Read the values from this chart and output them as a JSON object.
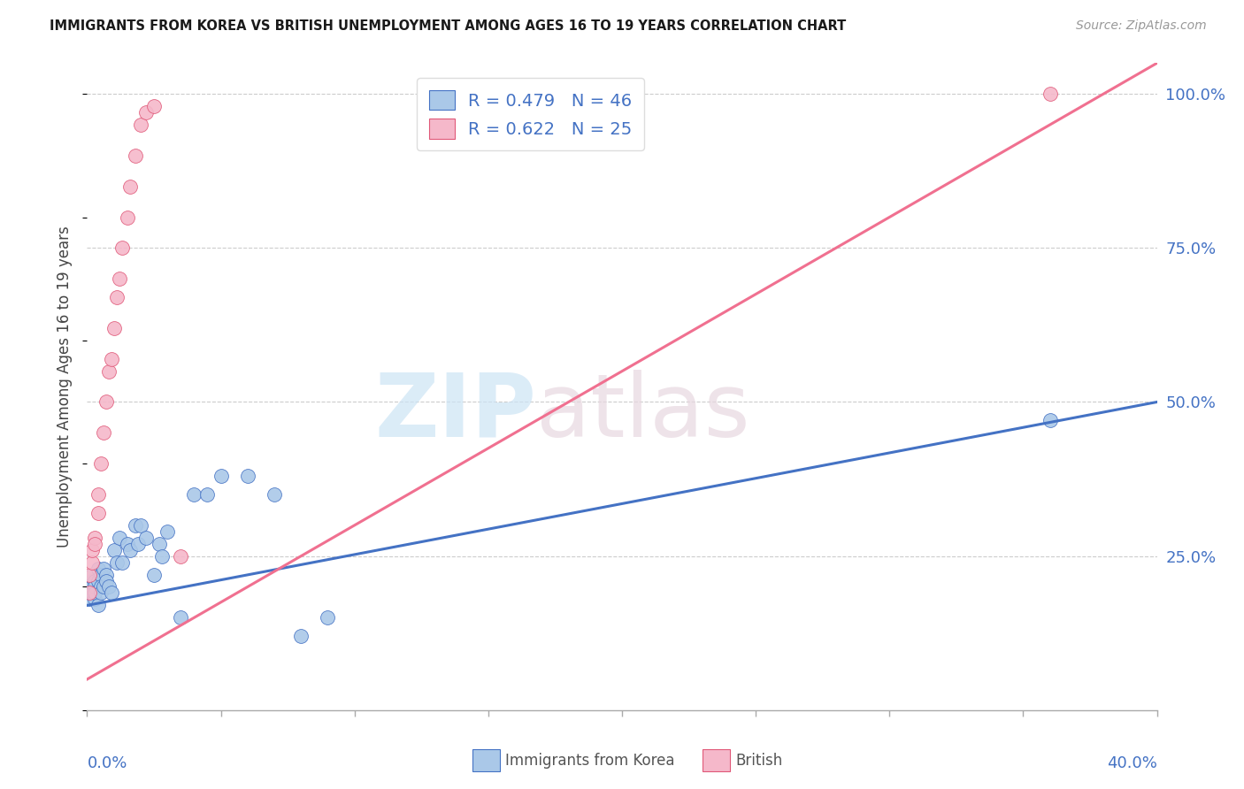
{
  "title": "IMMIGRANTS FROM KOREA VS BRITISH UNEMPLOYMENT AMONG AGES 16 TO 19 YEARS CORRELATION CHART",
  "source": "Source: ZipAtlas.com",
  "ylabel": "Unemployment Among Ages 16 to 19 years",
  "color_korea": "#aac8e8",
  "color_british": "#f5b8ca",
  "line_color_korea": "#4472c4",
  "line_color_british": "#f07090",
  "line_color_british_edge": "#e05878",
  "ytick_labels": [
    "",
    "25.0%",
    "50.0%",
    "75.0%",
    "100.0%"
  ],
  "ytick_vals": [
    0.0,
    0.25,
    0.5,
    0.75,
    1.0
  ],
  "xlim": [
    0.0,
    0.4
  ],
  "ylim": [
    0.0,
    1.05
  ],
  "korea_R": 0.479,
  "korea_N": 46,
  "british_R": 0.622,
  "british_N": 25,
  "korea_line_x0": 0.0,
  "korea_line_y0": 0.17,
  "korea_line_x1": 0.4,
  "korea_line_y1": 0.5,
  "british_line_x0": 0.0,
  "british_line_y0": 0.05,
  "british_line_x1": 0.4,
  "british_line_y1": 1.05,
  "watermark_color1": "#cce4f5",
  "watermark_color2": "#e8d8e0",
  "korea_x": [
    0.001,
    0.001,
    0.001,
    0.002,
    0.002,
    0.002,
    0.002,
    0.003,
    0.003,
    0.003,
    0.003,
    0.004,
    0.004,
    0.004,
    0.005,
    0.005,
    0.005,
    0.006,
    0.006,
    0.007,
    0.007,
    0.008,
    0.009,
    0.01,
    0.011,
    0.012,
    0.013,
    0.015,
    0.016,
    0.018,
    0.019,
    0.02,
    0.022,
    0.025,
    0.027,
    0.028,
    0.03,
    0.035,
    0.04,
    0.045,
    0.05,
    0.06,
    0.07,
    0.08,
    0.09,
    0.36
  ],
  "korea_y": [
    0.18,
    0.2,
    0.19,
    0.21,
    0.2,
    0.19,
    0.22,
    0.18,
    0.21,
    0.2,
    0.19,
    0.23,
    0.21,
    0.17,
    0.22,
    0.2,
    0.19,
    0.23,
    0.2,
    0.22,
    0.21,
    0.2,
    0.19,
    0.26,
    0.24,
    0.28,
    0.24,
    0.27,
    0.26,
    0.3,
    0.27,
    0.3,
    0.28,
    0.22,
    0.27,
    0.25,
    0.29,
    0.15,
    0.35,
    0.35,
    0.38,
    0.38,
    0.35,
    0.12,
    0.15,
    0.47
  ],
  "british_x": [
    0.001,
    0.001,
    0.002,
    0.002,
    0.003,
    0.003,
    0.004,
    0.004,
    0.005,
    0.006,
    0.007,
    0.008,
    0.009,
    0.01,
    0.011,
    0.012,
    0.013,
    0.015,
    0.016,
    0.018,
    0.02,
    0.022,
    0.025,
    0.035,
    0.36
  ],
  "british_y": [
    0.19,
    0.22,
    0.24,
    0.26,
    0.28,
    0.27,
    0.32,
    0.35,
    0.4,
    0.45,
    0.5,
    0.55,
    0.57,
    0.62,
    0.67,
    0.7,
    0.75,
    0.8,
    0.85,
    0.9,
    0.95,
    0.97,
    0.98,
    0.25,
    1.0
  ]
}
